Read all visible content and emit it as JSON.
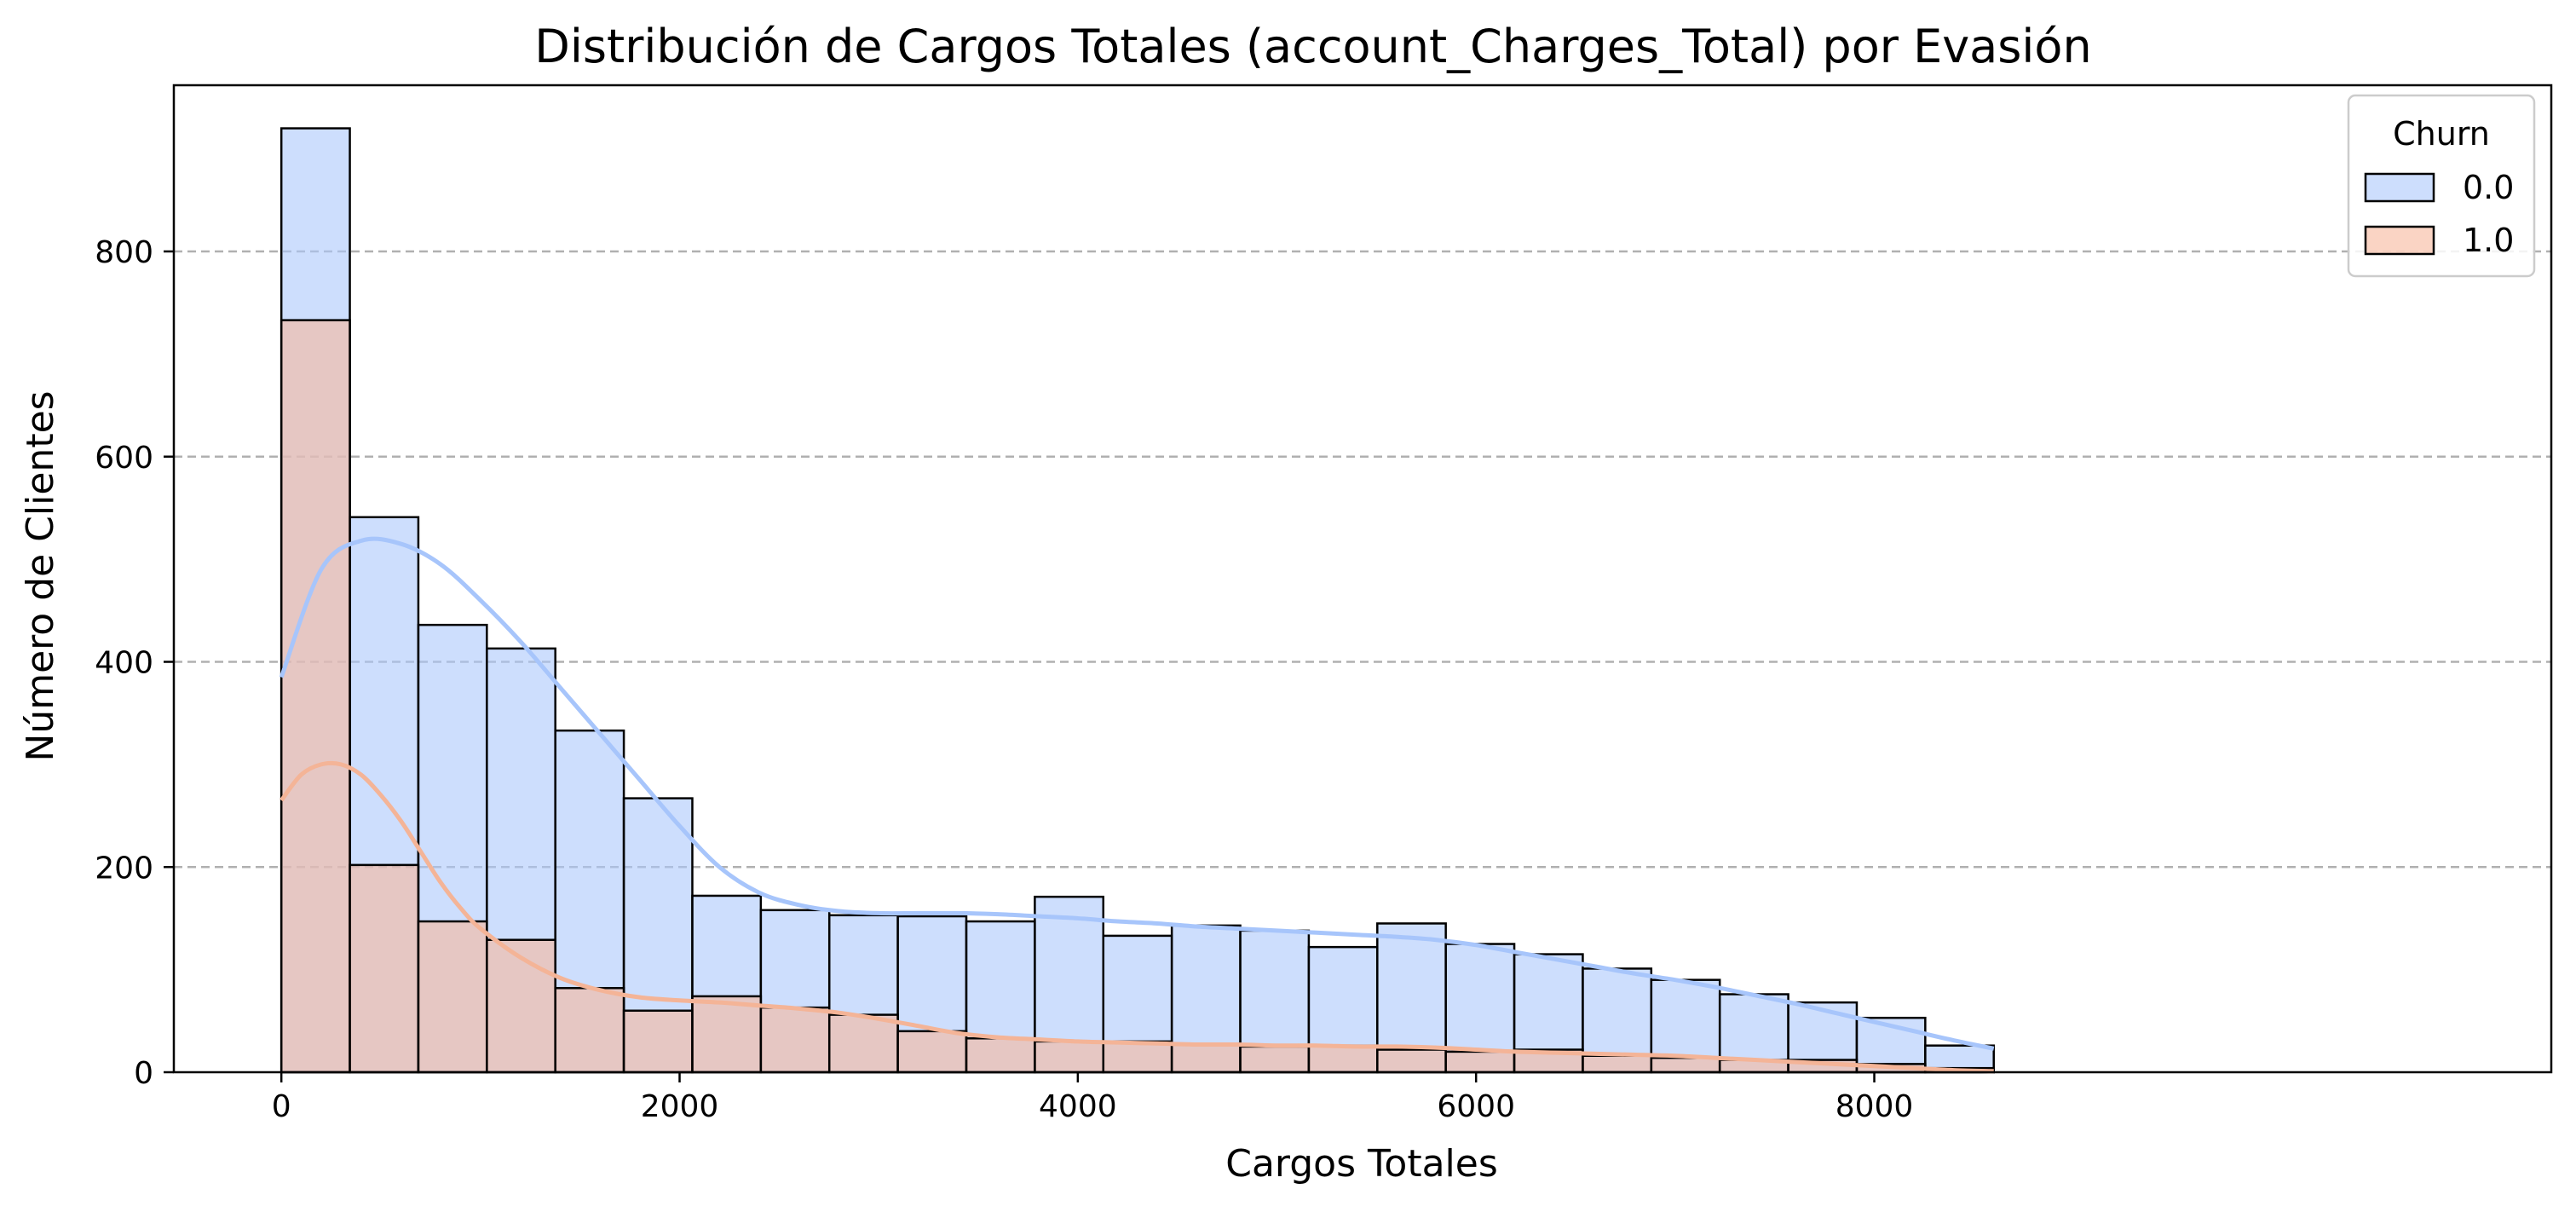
{
  "chart_data": {
    "type": "bar",
    "title": "Distribución de Cargos Totales (account_Charges_Total) por Evasión",
    "xlabel": "Cargos Totales",
    "ylabel": "Número de Clientes",
    "xlim": [
      -540,
      11400
    ],
    "ylim": [
      0,
      962
    ],
    "x_ticks": [
      0,
      2000,
      4000,
      6000,
      8000
    ],
    "y_ticks": [
      0,
      200,
      400,
      600,
      800
    ],
    "grid": "y-dashed",
    "legend": {
      "title": "Churn",
      "placement": "top-right",
      "entries": [
        "0.0",
        "1.0"
      ]
    },
    "bin_edges": [
      0,
      344,
      688,
      1032,
      1376,
      1720,
      2064,
      2408,
      2752,
      3096,
      3440,
      3784,
      4128,
      4472,
      4816,
      5160,
      5504,
      5848,
      6192,
      6536,
      6880,
      7224,
      7568,
      7912,
      8256,
      8600
    ],
    "series": [
      {
        "name": "0.0",
        "color": "#abc8fb",
        "fill_alpha": 0.6,
        "kde_color": "#a7c5fb",
        "values": [
          920,
          541,
          436,
          413,
          333,
          267,
          172,
          158,
          153,
          152,
          147,
          171,
          133,
          143,
          138,
          122,
          145,
          125,
          115,
          101,
          90,
          76,
          68,
          53,
          26
        ],
        "kde_x": [
          0,
          200,
          400,
          600,
          800,
          1000,
          1200,
          1400,
          1600,
          1800,
          2000,
          2200,
          2400,
          2600,
          2800,
          3000,
          3200,
          3400,
          3600,
          3800,
          4000,
          4200,
          4400,
          4600,
          4800,
          5000,
          5200,
          5400,
          5600,
          5800,
          6000,
          6200,
          6400,
          6600,
          6800,
          7000,
          7200,
          7400,
          7600,
          7800,
          8000,
          8200,
          8400,
          8600
        ],
        "kde_y": [
          385,
          490,
          518,
          515,
          495,
          460,
          420,
          375,
          330,
          285,
          240,
          200,
          175,
          163,
          157,
          155,
          155,
          155,
          154,
          152,
          150,
          147,
          145,
          142,
          140,
          138,
          136,
          134,
          132,
          129,
          124,
          117,
          110,
          103,
          96,
          90,
          83,
          75,
          67,
          58,
          49,
          40,
          31,
          23
        ]
      },
      {
        "name": "1.0",
        "color": "#f7b89c",
        "fill_alpha": 0.6,
        "kde_color": "#f4b497",
        "values": [
          733,
          202,
          147,
          129,
          82,
          60,
          74,
          63,
          56,
          40,
          33,
          30,
          30,
          28,
          25,
          26,
          22,
          20,
          22,
          16,
          14,
          12,
          12,
          8,
          4
        ],
        "kde_x": [
          0,
          100,
          200,
          300,
          400,
          500,
          600,
          700,
          800,
          900,
          1000,
          1200,
          1400,
          1600,
          1800,
          2000,
          2200,
          2400,
          2600,
          2800,
          3000,
          3200,
          3400,
          3600,
          3800,
          4000,
          4200,
          4400,
          4600,
          4800,
          5000,
          5200,
          5400,
          5600,
          5800,
          6000,
          6200,
          6400,
          6600,
          6800,
          7000,
          7200,
          7400,
          7600,
          7800,
          8000,
          8200,
          8400,
          8600
        ],
        "kde_y": [
          265,
          290,
          300,
          300,
          290,
          270,
          245,
          215,
          185,
          160,
          140,
          112,
          92,
          80,
          73,
          70,
          68,
          65,
          62,
          58,
          52,
          45,
          38,
          34,
          32,
          30,
          29,
          28,
          27,
          27,
          26,
          26,
          25,
          25,
          24,
          22,
          20,
          19,
          18,
          17,
          16,
          14,
          12,
          10,
          8,
          6,
          4,
          2,
          1
        ]
      }
    ]
  }
}
